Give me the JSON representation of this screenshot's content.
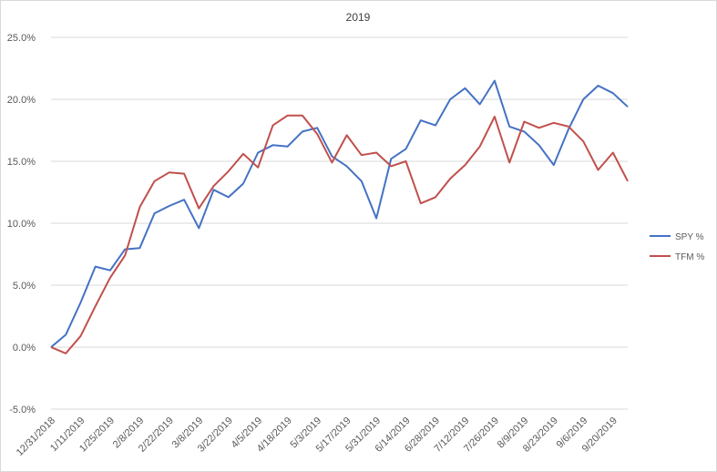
{
  "chart_data": {
    "type": "line",
    "title": "2019",
    "xlabel": "",
    "ylabel": "",
    "ylim": [
      -0.05,
      0.25
    ],
    "y_ticks": [
      "-5.0%",
      "0.0%",
      "5.0%",
      "10.0%",
      "15.0%",
      "20.0%",
      "25.0%"
    ],
    "x_tick_labels": [
      "12/31/2018",
      "1/11/2019",
      "1/25/2019",
      "2/8/2019",
      "2/22/2019",
      "3/8/2019",
      "3/22/2019",
      "4/5/2019",
      "4/18/2019",
      "5/3/2019",
      "5/17/2019",
      "5/31/2019",
      "6/14/2019",
      "6/28/2019",
      "7/12/2019",
      "7/26/2019",
      "8/9/2019",
      "8/23/2019",
      "9/6/2019",
      "9/20/2019"
    ],
    "grid": true,
    "legend_position": "right",
    "series": [
      {
        "name": "SPY %",
        "color": "#4472C4",
        "values": [
          0.0,
          0.01,
          0.036,
          0.065,
          0.062,
          0.079,
          0.08,
          0.108,
          0.114,
          0.119,
          0.096,
          0.127,
          0.121,
          0.132,
          0.157,
          0.163,
          0.162,
          0.174,
          0.177,
          0.154,
          0.146,
          0.134,
          0.104,
          0.152,
          0.16,
          0.183,
          0.179,
          0.2,
          0.209,
          0.196,
          0.215,
          0.178,
          0.174,
          0.163,
          0.147,
          0.176,
          0.2,
          0.211,
          0.205,
          0.194
        ]
      },
      {
        "name": "TFM %",
        "color": "#C0504D",
        "values": [
          0.0,
          -0.005,
          0.009,
          0.033,
          0.056,
          0.074,
          0.113,
          0.134,
          0.141,
          0.14,
          0.112,
          0.13,
          0.142,
          0.156,
          0.145,
          0.179,
          0.187,
          0.187,
          0.172,
          0.149,
          0.171,
          0.155,
          0.157,
          0.146,
          0.15,
          0.116,
          0.121,
          0.136,
          0.147,
          0.162,
          0.186,
          0.149,
          0.182,
          0.177,
          0.181,
          0.178,
          0.166,
          0.143,
          0.157,
          0.134
        ]
      }
    ]
  }
}
